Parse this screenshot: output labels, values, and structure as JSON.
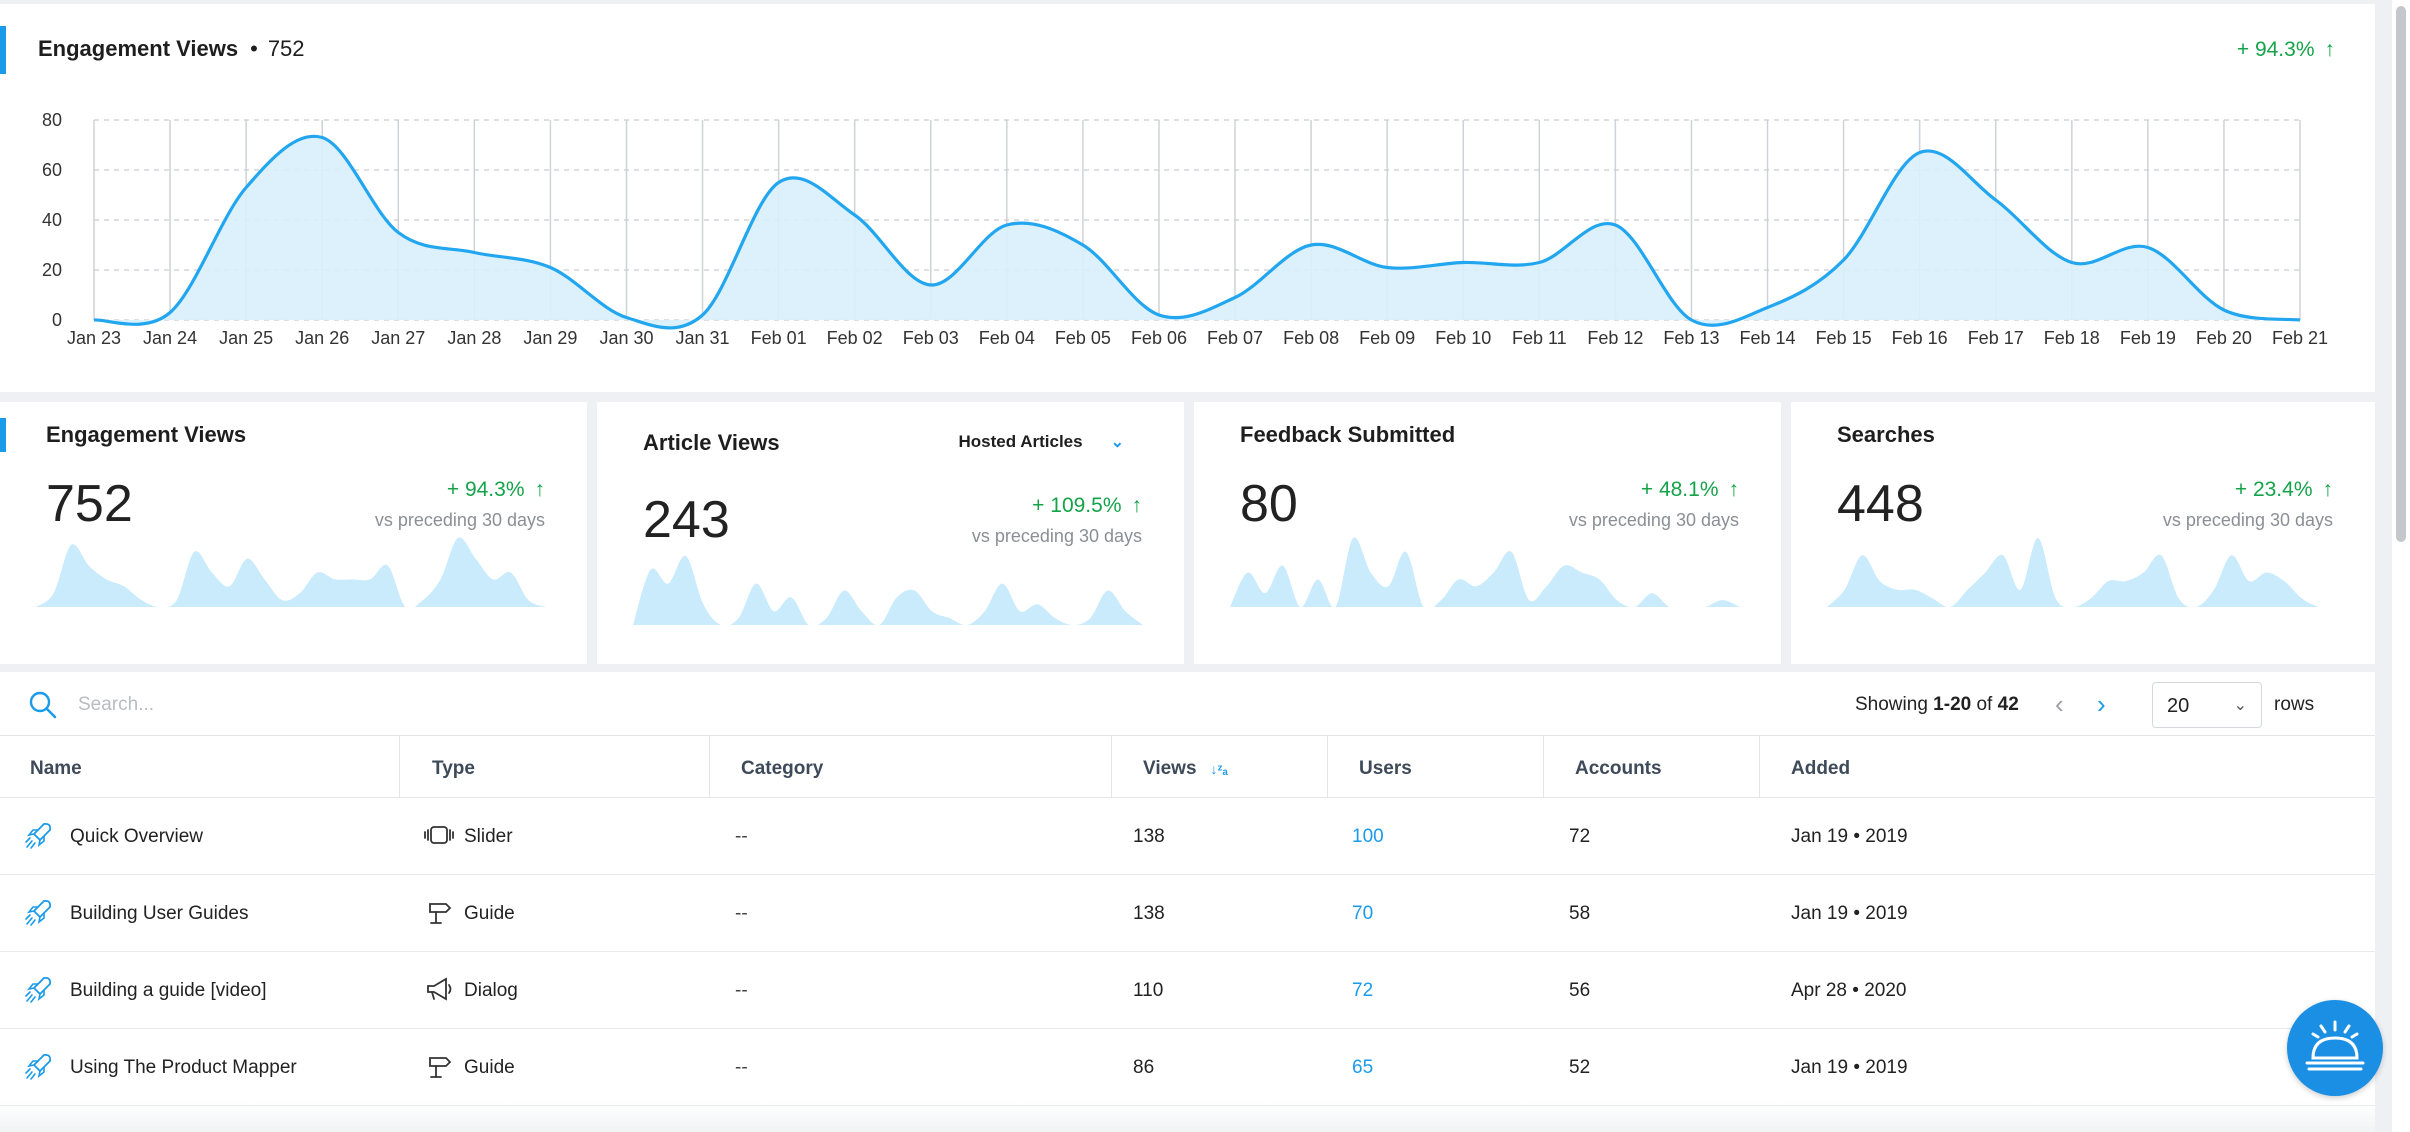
{
  "header": {
    "title": "Engagement Views",
    "separator": "•",
    "count": "752",
    "change": "+ 94.3%",
    "up_arrow": "↑",
    "accent": "#1a9bea",
    "positive_color": "#15a34a"
  },
  "chart_data": {
    "type": "area",
    "title": "",
    "xlabel": "",
    "ylabel": "",
    "x": [
      "Jan 23",
      "Jan 24",
      "Jan 25",
      "Jan 26",
      "Jan 27",
      "Jan 28",
      "Jan 29",
      "Jan 30",
      "Jan 31",
      "Feb 01",
      "Feb 02",
      "Feb 03",
      "Feb 04",
      "Feb 05",
      "Feb 06",
      "Feb 07",
      "Feb 08",
      "Feb 09",
      "Feb 10",
      "Feb 11",
      "Feb 12",
      "Feb 13",
      "Feb 14",
      "Feb 15",
      "Feb 16",
      "Feb 17",
      "Feb 18",
      "Feb 19",
      "Feb 20",
      "Feb 21"
    ],
    "series": [
      {
        "values": [
          0,
          3,
          53,
          73,
          35,
          27,
          21,
          1,
          2,
          55,
          42,
          14,
          38,
          30,
          2,
          9,
          30,
          21,
          23,
          23,
          38,
          0,
          5,
          24,
          67,
          48,
          23,
          29,
          4,
          0
        ]
      }
    ],
    "ylim": [
      0,
      80
    ],
    "yticks": [
      0,
      20,
      40,
      60,
      80
    ],
    "grid": true,
    "legend": false,
    "line_color": "#22a6ef",
    "fill_color": "#d9f0fc"
  },
  "stats": [
    {
      "title": "Engagement Views",
      "value": "752",
      "change": "+ 94.3%",
      "vs": "vs preceding 30 days",
      "spark": [
        0,
        2,
        9,
        6,
        4,
        3,
        1,
        0,
        1,
        8,
        5,
        3,
        7,
        4,
        1,
        2,
        5,
        4,
        4,
        4,
        6,
        0,
        1,
        4,
        10,
        7,
        4,
        5,
        1,
        0
      ]
    },
    {
      "title": "Article Views",
      "value": "243",
      "change": "+ 109.5%",
      "vs": "vs preceding 30 days",
      "dropdown": "Hosted Articles",
      "spark": [
        0,
        8,
        6,
        10,
        3,
        0,
        1,
        6,
        2,
        4,
        0,
        1,
        5,
        2,
        0,
        4,
        5,
        2,
        1,
        0,
        2,
        6,
        2,
        3,
        1,
        0,
        1,
        5,
        2,
        0
      ]
    },
    {
      "title": "Feedback Submitted",
      "value": "80",
      "change": "+ 48.1%",
      "vs": "vs preceding 30 days",
      "spark": [
        0,
        5,
        2,
        6,
        0,
        4,
        0,
        10,
        5,
        3,
        8,
        0,
        1,
        4,
        3,
        5,
        8,
        1,
        3,
        6,
        5,
        4,
        1,
        0,
        2,
        0,
        0,
        0,
        1,
        0
      ]
    },
    {
      "title": "Searches",
      "value": "448",
      "change": "+ 23.4%",
      "vs": "vs preceding 30 days",
      "spark": [
        0,
        2,
        6,
        3,
        2,
        2,
        1,
        0,
        2,
        4,
        6,
        2,
        8,
        1,
        0,
        1,
        3,
        3,
        4,
        6,
        1,
        0,
        2,
        6,
        3,
        4,
        3,
        1,
        0,
        0
      ]
    }
  ],
  "spark_color": "#c9ebfc",
  "search": {
    "placeholder": "Search..."
  },
  "pagination": {
    "showing_prefix": "Showing",
    "range": "1-20",
    "of": "of",
    "total": "42",
    "rows_value": "20",
    "rows_label": "rows",
    "prev_icon": "chevron-left",
    "next_icon": "chevron-right"
  },
  "table": {
    "columns": [
      "Name",
      "Type",
      "Category",
      "Views",
      "Users",
      "Accounts",
      "Added"
    ],
    "sorted_column": "Views",
    "sort_indicator": "↓ᶻₐ",
    "rows": [
      {
        "name": "Quick Overview",
        "type": "Slider",
        "type_icon": "slider-icon",
        "category": "--",
        "views": "138",
        "users": "100",
        "accounts": "72",
        "added": "Jan 19 • 2019"
      },
      {
        "name": "Building User Guides",
        "type": "Guide",
        "type_icon": "signpost-icon",
        "category": "--",
        "views": "138",
        "users": "70",
        "accounts": "58",
        "added": "Jan 19 • 2019"
      },
      {
        "name": "Building a guide [video]",
        "type": "Dialog",
        "type_icon": "megaphone-icon",
        "category": "--",
        "views": "110",
        "users": "72",
        "accounts": "56",
        "added": "Apr 28 • 2020"
      },
      {
        "name": "Using The Product Mapper",
        "type": "Guide",
        "type_icon": "signpost-icon",
        "category": "--",
        "views": "86",
        "users": "65",
        "accounts": "52",
        "added": "Jan 19 • 2019"
      }
    ]
  }
}
